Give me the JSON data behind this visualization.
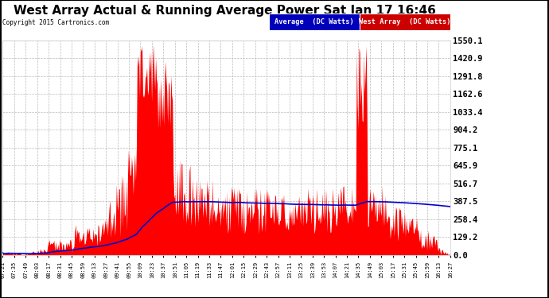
{
  "title": "West Array Actual & Running Average Power Sat Jan 17 16:46",
  "copyright": "Copyright 2015 Cartronics.com",
  "ylabel_right": [
    "0.0",
    "129.2",
    "258.4",
    "387.5",
    "516.7",
    "645.9",
    "775.1",
    "904.2",
    "1033.4",
    "1162.6",
    "1291.8",
    "1420.9",
    "1550.1"
  ],
  "ytick_vals": [
    0.0,
    129.2,
    258.4,
    387.5,
    516.7,
    645.9,
    775.1,
    904.2,
    1033.4,
    1162.6,
    1291.8,
    1420.9,
    1550.1
  ],
  "ymax": 1550.1,
  "ymin": 0.0,
  "legend_avg_label": "Average  (DC Watts)",
  "legend_west_label": "West Array  (DC Watts)",
  "fig_bg": "#ffffff",
  "plot_bg": "#ffffff",
  "red_color": "#ff0000",
  "blue_color": "#0000cc",
  "grid_color": "#aaaaaa",
  "title_color": "#000000",
  "title_fontsize": 11,
  "xtick_labels": [
    "07:21",
    "07:35",
    "07:49",
    "08:03",
    "08:17",
    "08:31",
    "08:45",
    "08:59",
    "09:13",
    "09:27",
    "09:41",
    "09:55",
    "10:09",
    "10:23",
    "10:37",
    "10:51",
    "11:05",
    "11:19",
    "11:33",
    "11:47",
    "12:01",
    "12:15",
    "12:29",
    "12:43",
    "12:57",
    "13:11",
    "13:25",
    "13:39",
    "13:53",
    "14:07",
    "14:21",
    "14:35",
    "14:49",
    "15:03",
    "15:17",
    "15:31",
    "15:45",
    "15:59",
    "16:13",
    "16:27"
  ],
  "num_points": 560
}
